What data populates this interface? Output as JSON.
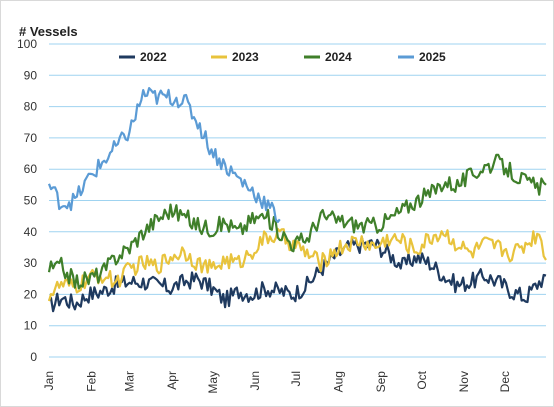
{
  "chart_data": {
    "type": "line",
    "title": "",
    "ylabel": "# Vessels",
    "xlabel": "",
    "ylim": [
      0,
      100
    ],
    "yticks": [
      0,
      10,
      20,
      30,
      40,
      50,
      60,
      70,
      80,
      90,
      100
    ],
    "x_tick_labels": [
      "Jan",
      "Feb",
      "Mar",
      "Apr",
      "May",
      "Jun",
      "Jul",
      "Aug",
      "Sep",
      "Oct",
      "Nov",
      "Dec"
    ],
    "grid": "horizontal",
    "legend_position": "top",
    "x_unit": "day of year",
    "series": [
      {
        "name": "2022",
        "color": "#1f3a5f",
        "x": [
          1,
          10,
          20,
          30,
          40,
          50,
          60,
          70,
          80,
          90,
          100,
          110,
          120,
          130,
          140,
          150,
          160,
          170,
          180,
          190,
          200,
          210,
          220,
          230,
          240,
          250,
          260,
          270,
          280,
          290,
          300,
          310,
          320,
          330,
          340,
          350,
          360,
          365
        ],
        "values": [
          16,
          19,
          17,
          20,
          21,
          23,
          24,
          24,
          23,
          22,
          24,
          25,
          22,
          18,
          21,
          20,
          22,
          21,
          20,
          23,
          28,
          32,
          35,
          36,
          36,
          33,
          29,
          32,
          30,
          26,
          23,
          24,
          26,
          24,
          21,
          19,
          24,
          26
        ]
      },
      {
        "name": "2023",
        "color": "#e8c33c",
        "x": [
          1,
          10,
          20,
          30,
          40,
          50,
          60,
          70,
          80,
          90,
          100,
          110,
          120,
          130,
          140,
          150,
          160,
          170,
          180,
          190,
          200,
          210,
          220,
          230,
          240,
          250,
          260,
          270,
          280,
          290,
          300,
          310,
          320,
          330,
          340,
          350,
          360,
          365
        ],
        "values": [
          20,
          23,
          22,
          25,
          26,
          24,
          28,
          30,
          29,
          32,
          34,
          30,
          28,
          31,
          30,
          34,
          38,
          39,
          36,
          33,
          30,
          34,
          36,
          37,
          35,
          38,
          37,
          34,
          38,
          40,
          36,
          33,
          36,
          35,
          33,
          36,
          40,
          31
        ]
      },
      {
        "name": "2024",
        "color": "#3f7f2a",
        "x": [
          1,
          10,
          20,
          30,
          40,
          50,
          60,
          70,
          80,
          90,
          100,
          110,
          120,
          130,
          140,
          150,
          160,
          170,
          180,
          190,
          200,
          210,
          220,
          230,
          240,
          250,
          260,
          270,
          280,
          290,
          300,
          310,
          320,
          330,
          340,
          350,
          360,
          365
        ],
        "values": [
          28,
          29,
          24,
          25,
          27,
          32,
          35,
          40,
          44,
          47,
          45,
          42,
          41,
          43,
          40,
          44,
          45,
          40,
          36,
          38,
          45,
          44,
          43,
          42,
          42,
          44,
          47,
          50,
          52,
          56,
          55,
          58,
          61,
          62,
          59,
          56,
          54,
          55
        ]
      },
      {
        "name": "2025",
        "color": "#5b9bd5",
        "x": [
          1,
          10,
          20,
          30,
          40,
          50,
          60,
          70,
          80,
          90,
          100,
          110,
          120,
          130,
          140,
          150,
          160,
          170
        ],
        "values": [
          55,
          49,
          50,
          57,
          62,
          67,
          72,
          84,
          83,
          83,
          82,
          75,
          66,
          61,
          57,
          53,
          49,
          44
        ]
      }
    ]
  }
}
